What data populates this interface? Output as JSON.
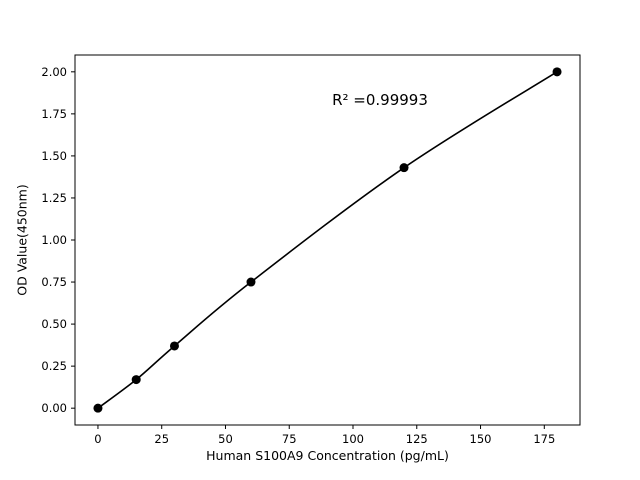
{
  "chart_data": {
    "type": "line",
    "title": "",
    "xlabel": "Human S100A9 Concentration (pg/mL)",
    "ylabel": "OD Value(450nm)",
    "annotation": "R² =0.99993",
    "x": [
      0,
      15,
      30,
      60,
      120,
      180
    ],
    "y": [
      0.0,
      0.17,
      0.37,
      0.75,
      1.43,
      2.0
    ],
    "xticks": [
      0,
      25,
      50,
      75,
      100,
      125,
      150,
      175
    ],
    "yticks": [
      0.0,
      0.25,
      0.5,
      0.75,
      1.0,
      1.25,
      1.5,
      1.75,
      2.0
    ],
    "xlim": [
      -9,
      189
    ],
    "ylim": [
      -0.1,
      2.1
    ],
    "grid": false,
    "legend": "none",
    "line_color": "#000000",
    "marker": "circle",
    "marker_color": "#000000",
    "axis_color": "#000000",
    "background": "#ffffff"
  }
}
